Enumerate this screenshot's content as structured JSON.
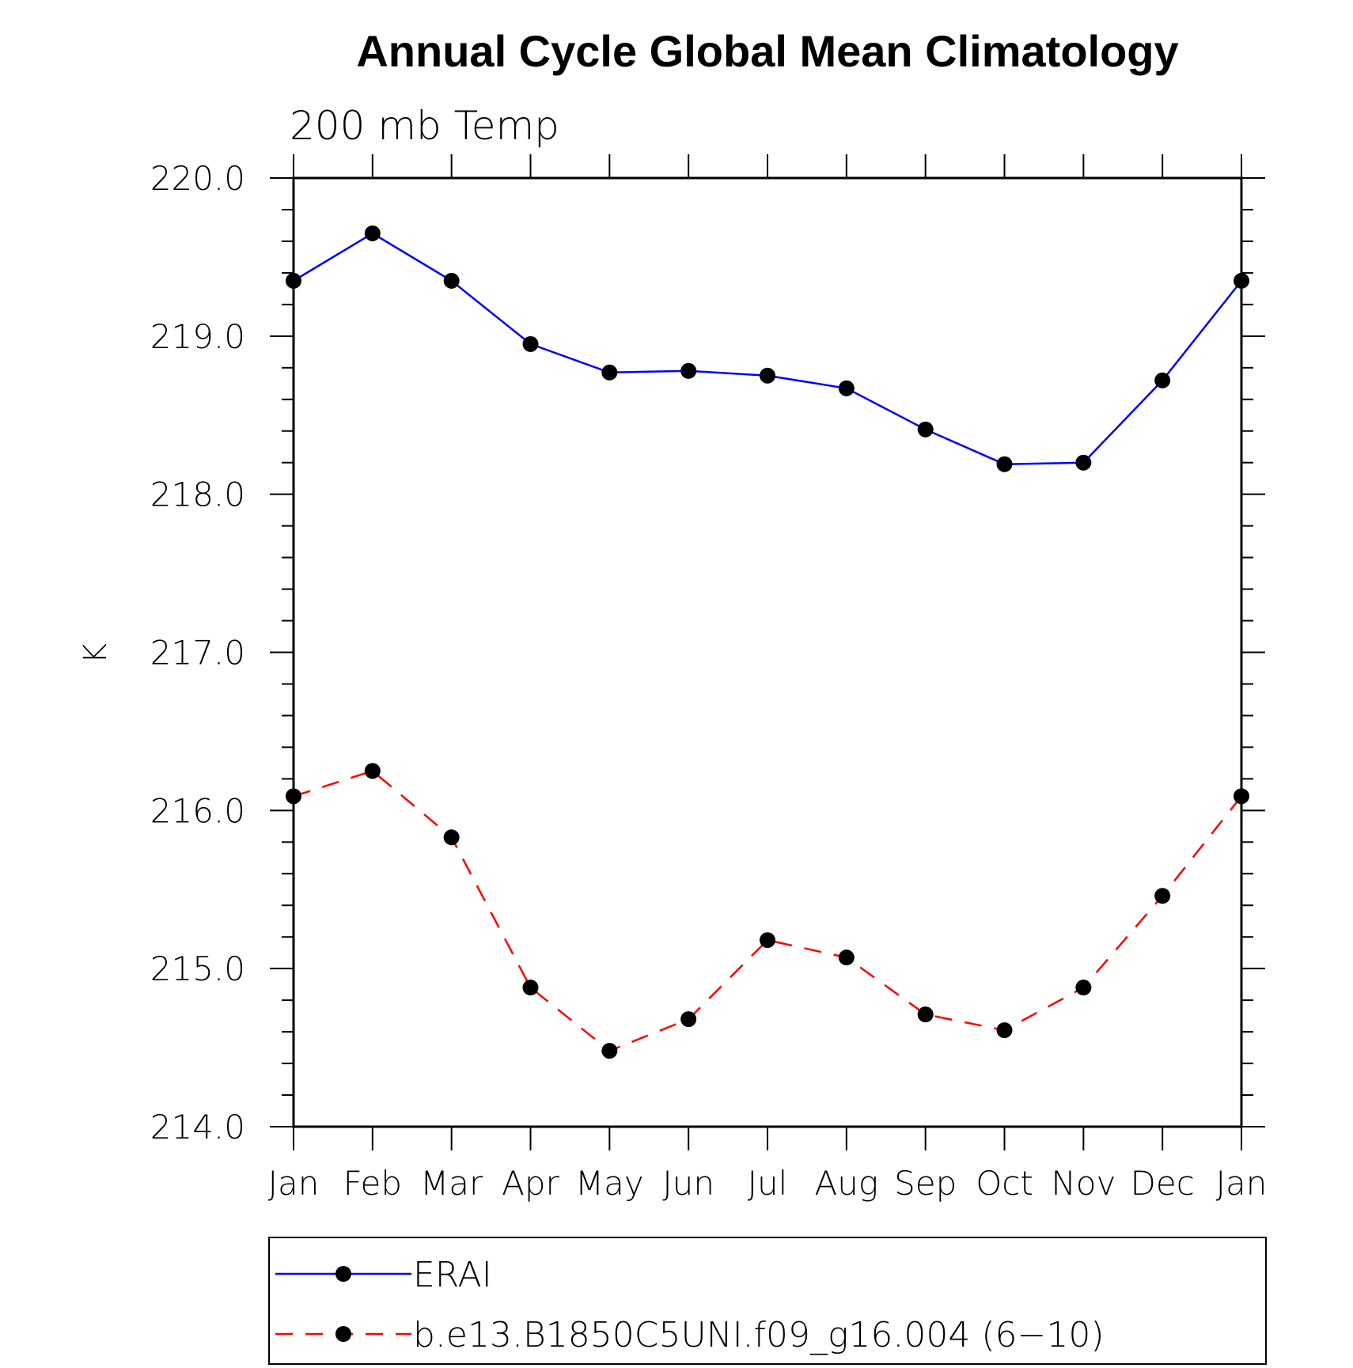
{
  "chart_data": {
    "type": "line",
    "title": "Annual Cycle Global Mean Climatology",
    "subtitle": "200 mb Temp",
    "xlabel": "",
    "ylabel": "K",
    "categories": [
      "Jan",
      "Feb",
      "Mar",
      "Apr",
      "May",
      "Jun",
      "Jul",
      "Aug",
      "Sep",
      "Oct",
      "Nov",
      "Dec",
      "Jan"
    ],
    "ylim": [
      214.0,
      220.0
    ],
    "yticks": [
      "214.0",
      "215.0",
      "216.0",
      "217.0",
      "218.0",
      "219.0",
      "220.0"
    ],
    "grid": false,
    "legend_position": "bottom",
    "series": [
      {
        "name": "ERAI",
        "color": "#0000ff",
        "dash": "solid",
        "values": [
          219.35,
          219.65,
          219.35,
          218.95,
          218.77,
          218.78,
          218.75,
          218.67,
          218.41,
          218.19,
          218.2,
          218.72,
          219.35
        ]
      },
      {
        "name": "b.e13.B1850C5UNI.f09_g16.004 (6−10)",
        "color": "#ff0000",
        "dash": "dashed",
        "values": [
          216.09,
          216.25,
          215.83,
          214.88,
          214.48,
          214.68,
          215.18,
          215.07,
          214.71,
          214.61,
          214.88,
          215.46,
          216.09
        ]
      }
    ]
  }
}
